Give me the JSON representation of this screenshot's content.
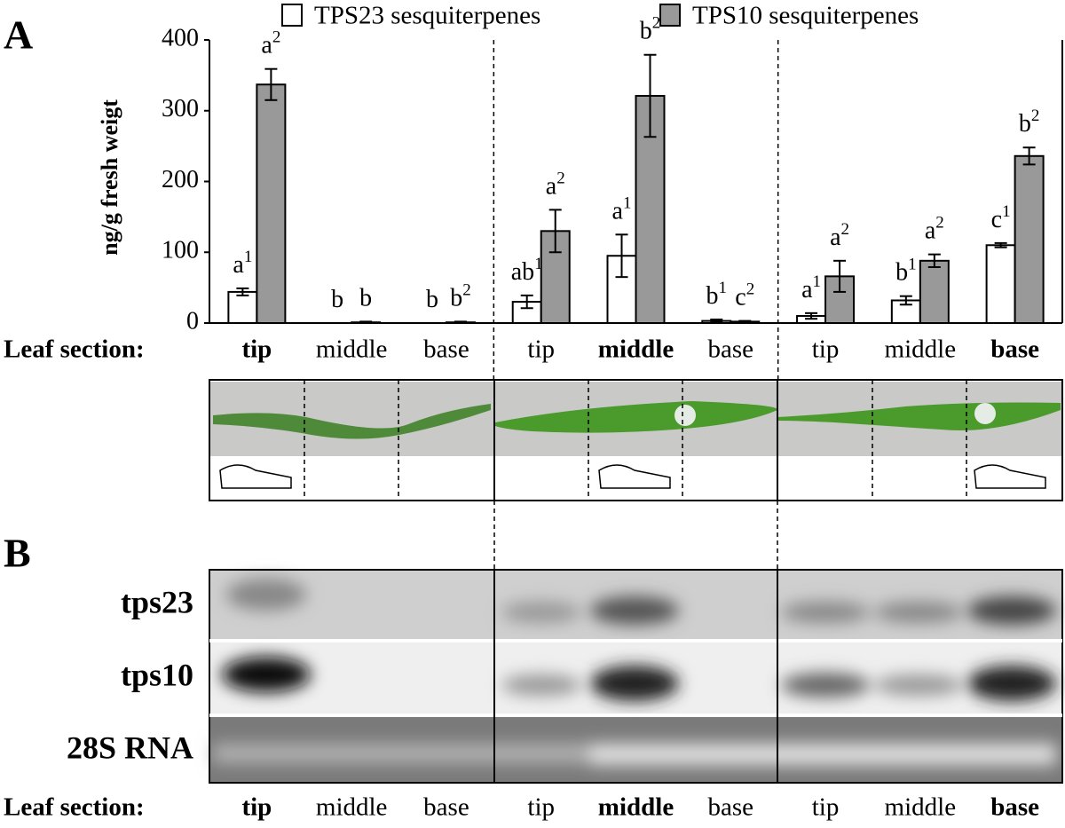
{
  "panel_a": "A",
  "panel_b": "B",
  "blot_rows": [
    "tps23",
    "tps10",
    "28S RNA"
  ],
  "chart_data": {
    "type": "bar",
    "y_label": "ng/g fresh weigt",
    "x_label": "Leaf section:",
    "categories": [
      "tip",
      "middle",
      "base",
      "tip",
      "middle",
      "base",
      "tip",
      "middle",
      "base"
    ],
    "series": [
      {
        "name": "TPS23 sesquiterpenes",
        "color": "#ffffff",
        "values": [
          44,
          0,
          0,
          30,
          95,
          3,
          10,
          32,
          110
        ],
        "errors": [
          5,
          0,
          0,
          9,
          30,
          2,
          4,
          6,
          3
        ],
        "letters": [
          "a",
          "b",
          "b",
          "ab",
          "a",
          "b",
          "a",
          "b",
          "c"
        ],
        "groups": [
          "1",
          null,
          null,
          "1",
          "1",
          "1",
          "1",
          "1",
          "1"
        ]
      },
      {
        "name": "TPS10 sesquiterpenes",
        "color": "#999999",
        "values": [
          337,
          1,
          1,
          130,
          321,
          2,
          66,
          88,
          236
        ],
        "errors": [
          22,
          1,
          1,
          30,
          58,
          1,
          22,
          9,
          12
        ],
        "letters": [
          "a",
          "b",
          "b",
          "a",
          "b",
          "c",
          "a",
          "a",
          "b"
        ],
        "groups": [
          "2",
          null,
          "2",
          "2",
          "2",
          "2",
          "2",
          "2",
          "2"
        ]
      }
    ],
    "ylim": [
      0,
      400
    ],
    "yticks": [
      0,
      100,
      200,
      300,
      400
    ]
  }
}
